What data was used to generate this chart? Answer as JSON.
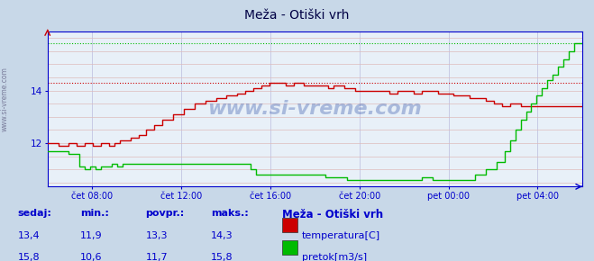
{
  "title": "Meža - Otiški vrh",
  "bg_color": "#c8d8e8",
  "plot_bg_color": "#e8f0f8",
  "x_labels": [
    "čet 08:00",
    "čet 12:00",
    "čet 16:00",
    "čet 20:00",
    "pet 00:00",
    "pet 04:00"
  ],
  "x_ticks_norm": [
    0.0833,
    0.25,
    0.4167,
    0.5833,
    0.75,
    0.9167
  ],
  "y_ticks": [
    12,
    14
  ],
  "ylim": [
    10.35,
    16.25
  ],
  "temp_color": "#cc0000",
  "flow_color": "#00bb00",
  "temp_max_line": 14.3,
  "flow_max_line": 15.8,
  "temp_data_x": [
    0.0,
    0.02,
    0.04,
    0.055,
    0.07,
    0.085,
    0.1,
    0.115,
    0.125,
    0.135,
    0.145,
    0.155,
    0.17,
    0.185,
    0.2,
    0.215,
    0.235,
    0.255,
    0.275,
    0.295,
    0.315,
    0.335,
    0.355,
    0.37,
    0.385,
    0.4,
    0.415,
    0.43,
    0.445,
    0.46,
    0.47,
    0.48,
    0.495,
    0.51,
    0.525,
    0.535,
    0.545,
    0.555,
    0.565,
    0.575,
    0.585,
    0.595,
    0.61,
    0.625,
    0.64,
    0.655,
    0.67,
    0.685,
    0.7,
    0.715,
    0.73,
    0.745,
    0.76,
    0.775,
    0.79,
    0.805,
    0.82,
    0.835,
    0.85,
    0.865,
    0.875,
    0.885,
    0.895,
    0.905,
    0.915,
    0.925,
    0.935,
    0.945,
    0.955,
    0.965,
    0.975,
    0.985,
    1.0
  ],
  "temp_data_y": [
    12.0,
    11.9,
    12.0,
    11.9,
    12.0,
    11.9,
    12.0,
    11.9,
    12.0,
    12.1,
    12.1,
    12.2,
    12.3,
    12.5,
    12.7,
    12.9,
    13.1,
    13.3,
    13.5,
    13.6,
    13.7,
    13.8,
    13.9,
    14.0,
    14.1,
    14.2,
    14.3,
    14.3,
    14.2,
    14.3,
    14.3,
    14.2,
    14.2,
    14.2,
    14.1,
    14.2,
    14.2,
    14.1,
    14.1,
    14.0,
    14.0,
    14.0,
    14.0,
    14.0,
    13.9,
    14.0,
    14.0,
    13.9,
    14.0,
    14.0,
    13.9,
    13.9,
    13.8,
    13.8,
    13.7,
    13.7,
    13.6,
    13.5,
    13.4,
    13.5,
    13.5,
    13.4,
    13.4,
    13.4,
    13.4,
    13.4,
    13.4,
    13.4,
    13.4,
    13.4,
    13.4,
    13.4,
    13.4
  ],
  "flow_data_x": [
    0.0,
    0.02,
    0.04,
    0.06,
    0.07,
    0.08,
    0.09,
    0.1,
    0.11,
    0.12,
    0.13,
    0.14,
    0.16,
    0.18,
    0.2,
    0.22,
    0.24,
    0.26,
    0.28,
    0.3,
    0.32,
    0.34,
    0.36,
    0.38,
    0.39,
    0.4,
    0.41,
    0.42,
    0.43,
    0.44,
    0.45,
    0.46,
    0.48,
    0.5,
    0.52,
    0.54,
    0.56,
    0.58,
    0.6,
    0.62,
    0.64,
    0.66,
    0.68,
    0.7,
    0.72,
    0.74,
    0.76,
    0.78,
    0.8,
    0.82,
    0.84,
    0.855,
    0.865,
    0.875,
    0.885,
    0.895,
    0.905,
    0.915,
    0.925,
    0.935,
    0.945,
    0.955,
    0.965,
    0.975,
    0.985,
    1.0
  ],
  "flow_data_y": [
    11.7,
    11.7,
    11.6,
    11.1,
    11.0,
    11.1,
    11.0,
    11.1,
    11.1,
    11.2,
    11.1,
    11.2,
    11.2,
    11.2,
    11.2,
    11.2,
    11.2,
    11.2,
    11.2,
    11.2,
    11.2,
    11.2,
    11.2,
    11.0,
    10.8,
    10.8,
    10.8,
    10.8,
    10.8,
    10.8,
    10.8,
    10.8,
    10.8,
    10.8,
    10.7,
    10.7,
    10.6,
    10.6,
    10.6,
    10.6,
    10.6,
    10.6,
    10.6,
    10.7,
    10.6,
    10.6,
    10.6,
    10.6,
    10.8,
    11.0,
    11.3,
    11.7,
    12.1,
    12.5,
    12.9,
    13.2,
    13.5,
    13.8,
    14.1,
    14.4,
    14.6,
    14.9,
    15.2,
    15.5,
    15.8,
    15.8
  ],
  "watermark": "www.si-vreme.com",
  "footer_labels": [
    "sedaj:",
    "min.:",
    "povpr.:",
    "maks.:"
  ],
  "footer_temp": [
    "13,4",
    "11,9",
    "13,3",
    "14,3"
  ],
  "footer_flow": [
    "15,8",
    "10,6",
    "11,7",
    "15,8"
  ],
  "footer_title": "Meža - Otiški vrh",
  "footer_series": [
    "temperatura[C]",
    "pretok[m3/s]"
  ],
  "footer_color_temp": "#cc0000",
  "footer_color_flow": "#00bb00",
  "footer_text_color": "#0000cc",
  "grid_color_h": "#ddbbbb",
  "grid_color_v": "#bbbbdd",
  "axis_color": "#0000cc",
  "spine_color": "#0000cc",
  "bottom_line_color": "#0000cc"
}
